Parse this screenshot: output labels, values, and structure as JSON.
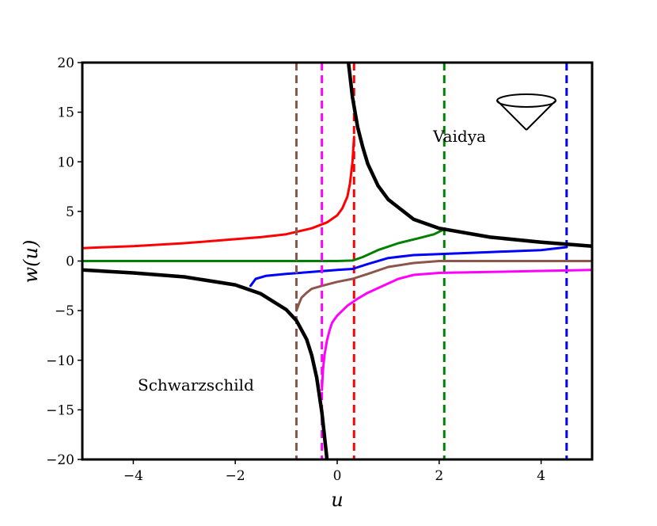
{
  "chart_data": {
    "type": "line",
    "title": "",
    "xlabel": "u",
    "ylabel": "w(u)",
    "xlim": [
      -5,
      5
    ],
    "ylim": [
      -20,
      20
    ],
    "xticks": [
      -4,
      -2,
      0,
      2,
      4
    ],
    "yticks": [
      -20,
      -15,
      -10,
      -5,
      0,
      5,
      10,
      15,
      20
    ],
    "xtick_labels": [
      "−4",
      "−2",
      "0",
      "2",
      "4"
    ],
    "ytick_labels": [
      "−20",
      "−15",
      "−10",
      "−5",
      "0",
      "5",
      "10",
      "15",
      "20"
    ],
    "grid": false,
    "legend": "none",
    "annotations": [
      "Vaidya",
      "Schwarzschild"
    ],
    "boundary": {
      "color": "#000000",
      "upper_branch": {
        "x": [
          0.22,
          0.3,
          0.4,
          0.5,
          0.6,
          0.8,
          1.0,
          1.5,
          2.0,
          3.0,
          4.0,
          5.0
        ],
        "y": [
          20,
          16.5,
          13.5,
          11.5,
          9.8,
          7.6,
          6.2,
          4.2,
          3.3,
          2.4,
          1.9,
          1.5
        ]
      },
      "lower_branch": {
        "x": [
          -5.0,
          -4.0,
          -3.0,
          -2.0,
          -1.5,
          -1.0,
          -0.8,
          -0.6,
          -0.5,
          -0.4,
          -0.3,
          -0.2
        ],
        "y": [
          -0.9,
          -1.2,
          -1.6,
          -2.4,
          -3.3,
          -4.9,
          -6.0,
          -7.9,
          -9.5,
          -11.8,
          -15.3,
          -20
        ]
      }
    },
    "series": [
      {
        "color": "#ff0000",
        "x": [
          -5.0,
          -4.0,
          -3.0,
          -2.0,
          -1.5,
          -1.0,
          -0.5,
          -0.2,
          0.0,
          0.1,
          0.2,
          0.25,
          0.3,
          0.33
        ],
        "y": [
          1.3,
          1.5,
          1.8,
          2.2,
          2.4,
          2.7,
          3.3,
          3.9,
          4.6,
          5.3,
          6.5,
          7.8,
          10,
          12.5
        ],
        "asymptote_x": 0.33
      },
      {
        "color": "#008000",
        "x": [
          -5.0,
          -2.0,
          0.0,
          0.3,
          0.5,
          0.8,
          1.2,
          1.6,
          1.9,
          2.1
        ],
        "y": [
          0,
          0,
          0,
          0.05,
          0.4,
          1.1,
          1.8,
          2.3,
          2.7,
          3.2
        ],
        "asymptote_x": 2.1
      },
      {
        "color": "#0000ff",
        "x": [
          -1.7,
          -1.6,
          -1.4,
          -1.0,
          -0.5,
          0.0,
          0.3,
          0.6,
          1.0,
          1.5,
          2.0,
          3.0,
          4.0,
          4.5
        ],
        "y": [
          -2.5,
          -1.8,
          -1.5,
          -1.3,
          -1.1,
          -0.9,
          -0.8,
          -0.3,
          0.3,
          0.6,
          0.7,
          0.9,
          1.1,
          1.4
        ],
        "asymptote_x": 4.5
      },
      {
        "color": "#8c564b",
        "x": [
          -0.8,
          -0.75,
          -0.7,
          -0.6,
          -0.5,
          -0.3,
          0.0,
          0.3,
          0.6,
          1.0,
          1.5,
          2.0,
          3.0,
          4.0,
          5.0
        ],
        "y": [
          -5.0,
          -4.3,
          -3.7,
          -3.2,
          -2.8,
          -2.5,
          -2.1,
          -1.8,
          -1.3,
          -0.6,
          -0.2,
          0.0,
          0.0,
          0.0,
          0.0
        ],
        "asymptote_x": -0.8
      },
      {
        "color": "#ff00ff",
        "x": [
          -0.3,
          -0.28,
          -0.25,
          -0.2,
          -0.15,
          -0.1,
          0.0,
          0.2,
          0.4,
          0.6,
          0.9,
          1.2,
          1.5,
          2.0,
          3.0,
          4.0,
          5.0
        ],
        "y": [
          -13.0,
          -11.0,
          -9.5,
          -8.0,
          -7.0,
          -6.2,
          -5.5,
          -4.5,
          -3.8,
          -3.2,
          -2.5,
          -1.8,
          -1.4,
          -1.2,
          -1.1,
          -1.0,
          -0.9
        ],
        "asymptote_x": -0.3
      }
    ]
  }
}
